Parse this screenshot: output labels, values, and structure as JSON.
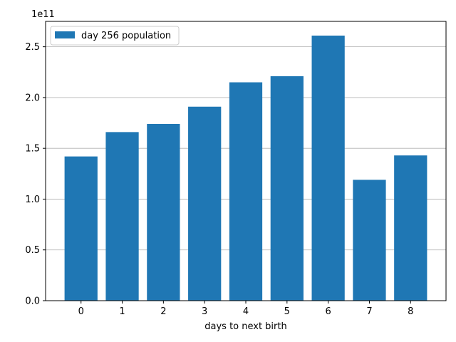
{
  "chart_data": {
    "type": "bar",
    "categories": [
      "0",
      "1",
      "2",
      "3",
      "4",
      "5",
      "6",
      "7",
      "8"
    ],
    "series": [
      {
        "name": "day 256 population",
        "values": [
          142000000000,
          166000000000,
          174000000000,
          191000000000,
          215000000000,
          221000000000,
          261000000000,
          119000000000,
          143000000000
        ]
      }
    ],
    "title": "",
    "xlabel": "days to next birth",
    "ylabel": "",
    "ylim": [
      0,
      275000000000
    ],
    "yticks": [
      "0.0",
      "0.5",
      "1.0",
      "1.5",
      "2.0",
      "2.5"
    ],
    "y_offset_label": "1e11",
    "grid": "y-major",
    "legend_position": "upper-left",
    "bar_color": "#1f77b4"
  }
}
